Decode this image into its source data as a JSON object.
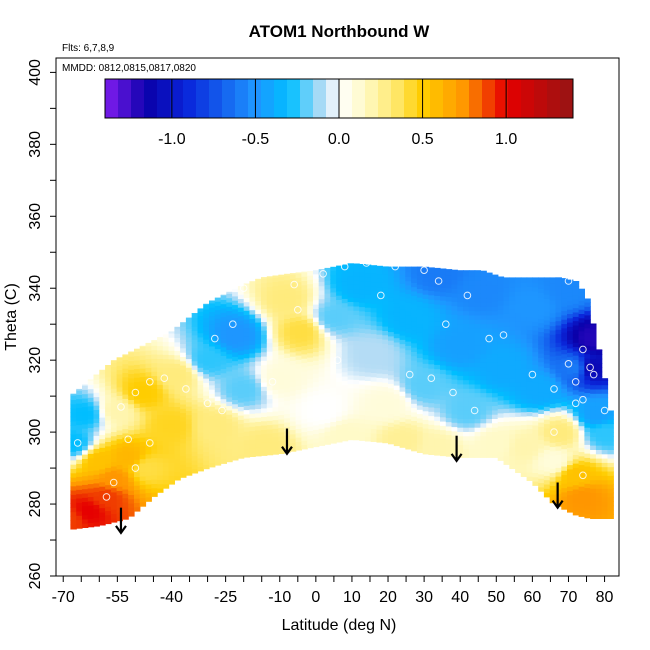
{
  "chart_data": {
    "type": "heatmap",
    "title": "ATOM1 Northbound W",
    "annotations": {
      "flights": "Flts: 6,7,8,9",
      "dates": "MMDD: 0812,0815,0817,0820"
    },
    "xlabel": "Latitude (deg N)",
    "ylabel": "Theta (C)",
    "xlim": [
      -72,
      84
    ],
    "ylim": [
      260,
      404
    ],
    "x_ticks": [
      -70,
      -55,
      -40,
      -25,
      -10,
      0,
      10,
      20,
      30,
      40,
      50,
      60,
      70,
      80
    ],
    "y_ticks": [
      260,
      280,
      300,
      320,
      340,
      360,
      380,
      400
    ],
    "colorbar": {
      "range": [
        -1.4,
        1.4
      ],
      "ticks": [
        -1.0,
        -0.5,
        0.0,
        0.5,
        1.0
      ],
      "tick_labels": [
        "-1.0",
        "-0.5",
        "0.0",
        "0.5",
        "1.0"
      ]
    },
    "field_points": [
      {
        "lat": -68,
        "theta": 276,
        "w": 0.9
      },
      {
        "lat": -63,
        "theta": 278,
        "w": 1.0
      },
      {
        "lat": -58,
        "theta": 282,
        "w": 0.9
      },
      {
        "lat": -56,
        "theta": 287,
        "w": 0.75
      },
      {
        "lat": -60,
        "theta": 292,
        "w": 0.55
      },
      {
        "lat": -52,
        "theta": 293,
        "w": 0.6
      },
      {
        "lat": -47,
        "theta": 290,
        "w": 0.4
      },
      {
        "lat": -67,
        "theta": 297,
        "w": -0.3
      },
      {
        "lat": -64,
        "theta": 305,
        "w": -0.3
      },
      {
        "lat": -55,
        "theta": 306,
        "w": 0.2
      },
      {
        "lat": -48,
        "theta": 311,
        "w": 0.5
      },
      {
        "lat": -40,
        "theta": 302,
        "w": 0.45
      },
      {
        "lat": -38,
        "theta": 316,
        "w": 0.3
      },
      {
        "lat": -28,
        "theta": 302,
        "w": 0.3
      },
      {
        "lat": -30,
        "theta": 320,
        "w": -0.25
      },
      {
        "lat": -22,
        "theta": 327,
        "w": -0.5
      },
      {
        "lat": -20,
        "theta": 312,
        "w": -0.2
      },
      {
        "lat": -14,
        "theta": 296,
        "w": 0.3
      },
      {
        "lat": -10,
        "theta": 315,
        "w": 0.1
      },
      {
        "lat": -8,
        "theta": 337,
        "w": 0.3
      },
      {
        "lat": -4,
        "theta": 328,
        "w": 0.4
      },
      {
        "lat": 2,
        "theta": 306,
        "w": 0.0
      },
      {
        "lat": 5,
        "theta": 332,
        "w": -0.2
      },
      {
        "lat": 8,
        "theta": 299,
        "w": 0.15
      },
      {
        "lat": 12,
        "theta": 341,
        "w": -0.35
      },
      {
        "lat": 16,
        "theta": 322,
        "w": -0.1
      },
      {
        "lat": 20,
        "theta": 308,
        "w": 0.1
      },
      {
        "lat": 24,
        "theta": 298,
        "w": 0.25
      },
      {
        "lat": 26,
        "theta": 332,
        "w": -0.35
      },
      {
        "lat": 30,
        "theta": 313,
        "w": -0.2
      },
      {
        "lat": 34,
        "theta": 344,
        "w": -0.6
      },
      {
        "lat": 34,
        "theta": 296,
        "w": 0.2
      },
      {
        "lat": 40,
        "theta": 324,
        "w": -0.45
      },
      {
        "lat": 42,
        "theta": 306,
        "w": -0.2
      },
      {
        "lat": 46,
        "theta": 339,
        "w": -0.55
      },
      {
        "lat": 50,
        "theta": 297,
        "w": 0.15
      },
      {
        "lat": 52,
        "theta": 318,
        "w": -0.4
      },
      {
        "lat": 58,
        "theta": 296,
        "w": 0.2
      },
      {
        "lat": 60,
        "theta": 335,
        "w": -0.5
      },
      {
        "lat": 62,
        "theta": 312,
        "w": -0.4
      },
      {
        "lat": 66,
        "theta": 292,
        "w": 0.1
      },
      {
        "lat": 68,
        "theta": 300,
        "w": 0.3
      },
      {
        "lat": 70,
        "theta": 340,
        "w": -0.55
      },
      {
        "lat": 72,
        "theta": 318,
        "w": -0.6
      },
      {
        "lat": 72,
        "theta": 288,
        "w": 0.55
      },
      {
        "lat": 74,
        "theta": 282,
        "w": 0.75
      },
      {
        "lat": 76,
        "theta": 318,
        "w": -1.1
      },
      {
        "lat": 77,
        "theta": 326,
        "w": -1.2
      },
      {
        "lat": 78,
        "theta": 305,
        "w": -0.45
      },
      {
        "lat": 80,
        "theta": 300,
        "w": -0.25
      }
    ],
    "domain_top": [
      [
        -68,
        310
      ],
      [
        -62,
        315
      ],
      [
        -56,
        320
      ],
      [
        -48,
        324
      ],
      [
        -40,
        328
      ],
      [
        -30,
        336
      ],
      [
        -20,
        341
      ],
      [
        -15,
        343
      ],
      [
        -8,
        344
      ],
      [
        0,
        345
      ],
      [
        10,
        347
      ],
      [
        20,
        346
      ],
      [
        30,
        346
      ],
      [
        40,
        345
      ],
      [
        46,
        345
      ],
      [
        52,
        343
      ],
      [
        60,
        343
      ],
      [
        68,
        343
      ],
      [
        72,
        342
      ],
      [
        75,
        338
      ],
      [
        78,
        325
      ],
      [
        80,
        315
      ],
      [
        81,
        306
      ]
    ],
    "domain_bottom": [
      [
        -68,
        273
      ],
      [
        -60,
        274
      ],
      [
        -52,
        276
      ],
      [
        -45,
        282
      ],
      [
        -38,
        287
      ],
      [
        -30,
        290
      ],
      [
        -20,
        293
      ],
      [
        -10,
        294
      ],
      [
        0,
        296
      ],
      [
        10,
        298
      ],
      [
        20,
        297
      ],
      [
        30,
        294
      ],
      [
        40,
        293
      ],
      [
        50,
        293
      ],
      [
        60,
        286
      ],
      [
        66,
        280
      ],
      [
        72,
        277
      ],
      [
        76,
        276
      ],
      [
        81,
        276
      ]
    ],
    "arrows": [
      {
        "lat": -54,
        "theta_top": 279,
        "theta_bottom": 272
      },
      {
        "lat": -8,
        "theta_top": 301,
        "theta_bottom": 294
      },
      {
        "lat": 39,
        "theta_top": 299,
        "theta_bottom": 292
      },
      {
        "lat": 67,
        "theta_top": 286,
        "theta_bottom": 279
      }
    ],
    "sample_markers": [
      {
        "lat": -66,
        "theta": 297
      },
      {
        "lat": -58,
        "theta": 282
      },
      {
        "lat": -56,
        "theta": 286
      },
      {
        "lat": -52,
        "theta": 298
      },
      {
        "lat": -50,
        "theta": 290
      },
      {
        "lat": -46,
        "theta": 297
      },
      {
        "lat": -54,
        "theta": 307
      },
      {
        "lat": -50,
        "theta": 311
      },
      {
        "lat": -46,
        "theta": 314
      },
      {
        "lat": -42,
        "theta": 315
      },
      {
        "lat": -36,
        "theta": 312
      },
      {
        "lat": -30,
        "theta": 308
      },
      {
        "lat": -26,
        "theta": 306
      },
      {
        "lat": -28,
        "theta": 326
      },
      {
        "lat": -23,
        "theta": 330
      },
      {
        "lat": -20,
        "theta": 340
      },
      {
        "lat": -12,
        "theta": 314
      },
      {
        "lat": -5,
        "theta": 334
      },
      {
        "lat": -6,
        "theta": 341
      },
      {
        "lat": 2,
        "theta": 344
      },
      {
        "lat": 6,
        "theta": 320
      },
      {
        "lat": 8,
        "theta": 346
      },
      {
        "lat": 14,
        "theta": 347
      },
      {
        "lat": 18,
        "theta": 338
      },
      {
        "lat": 22,
        "theta": 346
      },
      {
        "lat": 26,
        "theta": 316
      },
      {
        "lat": 30,
        "theta": 345
      },
      {
        "lat": 32,
        "theta": 315
      },
      {
        "lat": 34,
        "theta": 342
      },
      {
        "lat": 36,
        "theta": 330
      },
      {
        "lat": 38,
        "theta": 311
      },
      {
        "lat": 42,
        "theta": 338
      },
      {
        "lat": 44,
        "theta": 306
      },
      {
        "lat": 48,
        "theta": 326
      },
      {
        "lat": 52,
        "theta": 327
      },
      {
        "lat": 60,
        "theta": 316
      },
      {
        "lat": 66,
        "theta": 300
      },
      {
        "lat": 66,
        "theta": 312
      },
      {
        "lat": 70,
        "theta": 342
      },
      {
        "lat": 70,
        "theta": 319
      },
      {
        "lat": 72,
        "theta": 314
      },
      {
        "lat": 72,
        "theta": 308
      },
      {
        "lat": 74,
        "theta": 323
      },
      {
        "lat": 74,
        "theta": 309
      },
      {
        "lat": 76,
        "theta": 318
      },
      {
        "lat": 77,
        "theta": 316
      },
      {
        "lat": 80,
        "theta": 306
      },
      {
        "lat": 74,
        "theta": 288
      }
    ]
  }
}
